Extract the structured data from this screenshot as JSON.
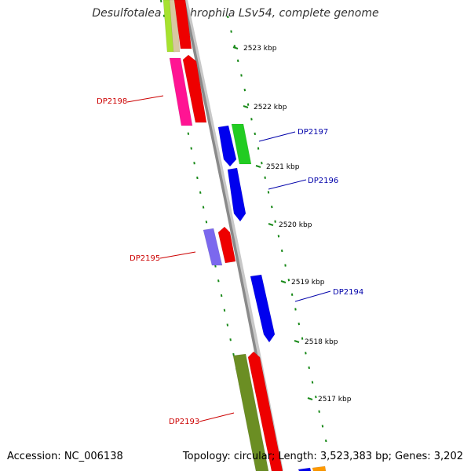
{
  "title": "Desulfotalea psychrophila LSv54, complete genome",
  "footer": {
    "accession": "Accession: NC_006138",
    "topology": "Topology: circular; Length: 3,523,383 bp; Genes: 3,202"
  },
  "colors": {
    "backbone": "#8a8a8a",
    "tick": "#1a8a1a",
    "label_left": "#cc0000",
    "label_right": "#0000aa"
  },
  "ticks": [
    "2523 kbp",
    "2522 kbp",
    "2521 kbp",
    "2520 kbp",
    "2519 kbp",
    "2518 kbp",
    "2517 kbp"
  ],
  "gene_labels": [
    {
      "id": "DP2198",
      "side": "left"
    },
    {
      "id": "DP2197",
      "side": "right"
    },
    {
      "id": "DP2196",
      "side": "right"
    },
    {
      "id": "DP2195",
      "side": "left"
    },
    {
      "id": "DP2194",
      "side": "right"
    },
    {
      "id": "DP2193",
      "side": "left"
    }
  ]
}
